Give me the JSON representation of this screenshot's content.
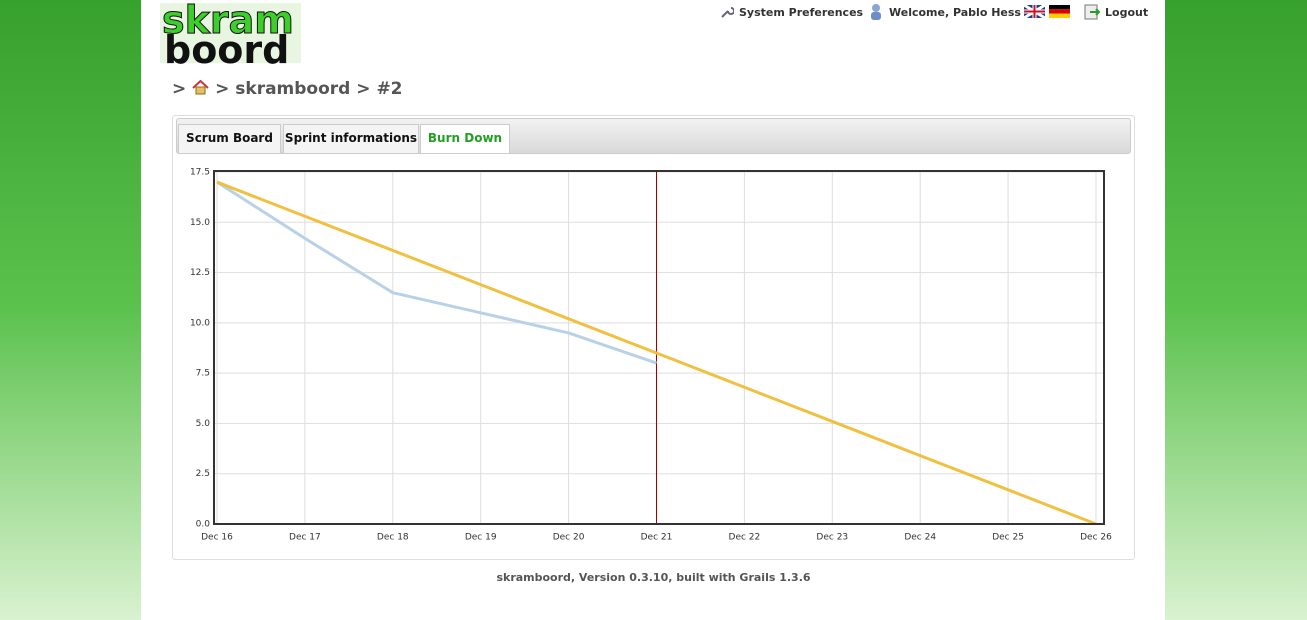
{
  "header": {
    "logo_top": "skram",
    "logo_bottom": "boord",
    "nav": [
      "System Preferences",
      "Welcome, Pablo Hess",
      "Logout"
    ]
  },
  "breadcrumb": {
    "separator": ">",
    "items": [
      "skramboord",
      "#2"
    ]
  },
  "tabs": [
    "Scrum Board",
    "Sprint informations",
    "Burn Down"
  ],
  "active_tab": 2,
  "chart_data": {
    "type": "line",
    "categories": [
      "Dec 16",
      "Dec 17",
      "Dec 18",
      "Dec 19",
      "Dec 20",
      "Dec 21",
      "Dec 22",
      "Dec 23",
      "Dec 24",
      "Dec 25",
      "Dec 26"
    ],
    "series": [
      {
        "color": "#f0c040",
        "values": [
          17,
          15.3,
          13.6,
          11.9,
          10.2,
          8.5,
          6.8,
          5.1,
          3.4,
          1.7,
          0
        ]
      },
      {
        "color": "#b9d1e6",
        "values": [
          17,
          14.2,
          11.5,
          10.5,
          9.5,
          8.0,
          null,
          null,
          null,
          null,
          null
        ]
      }
    ],
    "ylim": [
      0,
      17.5
    ],
    "yticks": [
      {
        "value": 0,
        "label": "0.0"
      },
      2.5,
      {
        "value": 5,
        "label": "5.0"
      },
      7.5,
      {
        "value": 10,
        "label": "10.0"
      },
      12.5,
      {
        "value": 15,
        "label": "15.0"
      },
      17.5
    ],
    "grid": true,
    "vline": {
      "x": "Dec 21",
      "color": "#a00000"
    }
  },
  "footer": "skramboord, Version 0.3.10, built with Grails 1.3.6"
}
